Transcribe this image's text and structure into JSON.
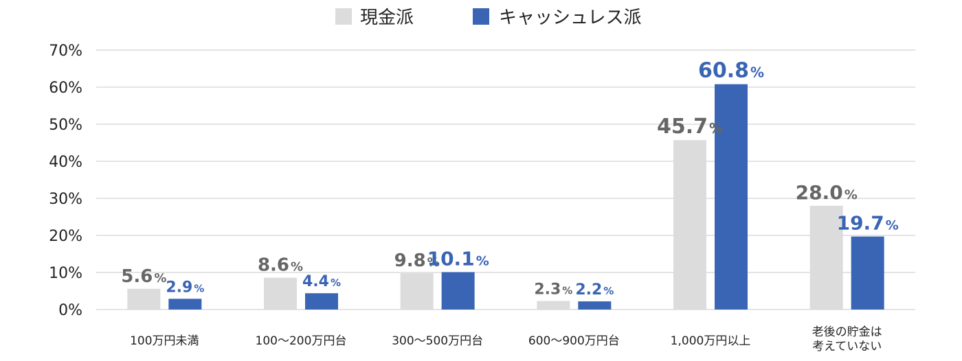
{
  "chart_data": {
    "type": "bar",
    "categories": [
      [
        "100万円未満"
      ],
      [
        "100～200万円台"
      ],
      [
        "300～500万円台"
      ],
      [
        "600～900万円台"
      ],
      [
        "1,000万円以上"
      ],
      [
        "老後の貯金は",
        "考えていない"
      ]
    ],
    "series": [
      {
        "name": "現金派",
        "values": [
          5.6,
          8.6,
          9.8,
          2.3,
          45.7,
          28.0
        ],
        "labels": [
          "5.6",
          "8.6",
          "9.8",
          "2.3",
          "45.7",
          "28.0"
        ]
      },
      {
        "name": "キャッシュレス派",
        "values": [
          2.9,
          4.4,
          10.1,
          2.2,
          60.8,
          19.7
        ],
        "labels": [
          "2.9",
          "4.4",
          "10.1",
          "2.2",
          "60.8",
          "19.7"
        ]
      }
    ],
    "value_suffix": "%",
    "yticks": [
      "0%",
      "10%",
      "20%",
      "30%",
      "40%",
      "50%",
      "60%",
      "70%"
    ],
    "ylim": [
      0,
      70
    ],
    "grid": true,
    "legend": "top-center",
    "colors": {
      "cash": "#dcdcdc",
      "cashless": "#3a64b4",
      "cash_label": "#666666",
      "cashless_label": "#3a64b4",
      "grid": "#c8c8c8"
    }
  }
}
